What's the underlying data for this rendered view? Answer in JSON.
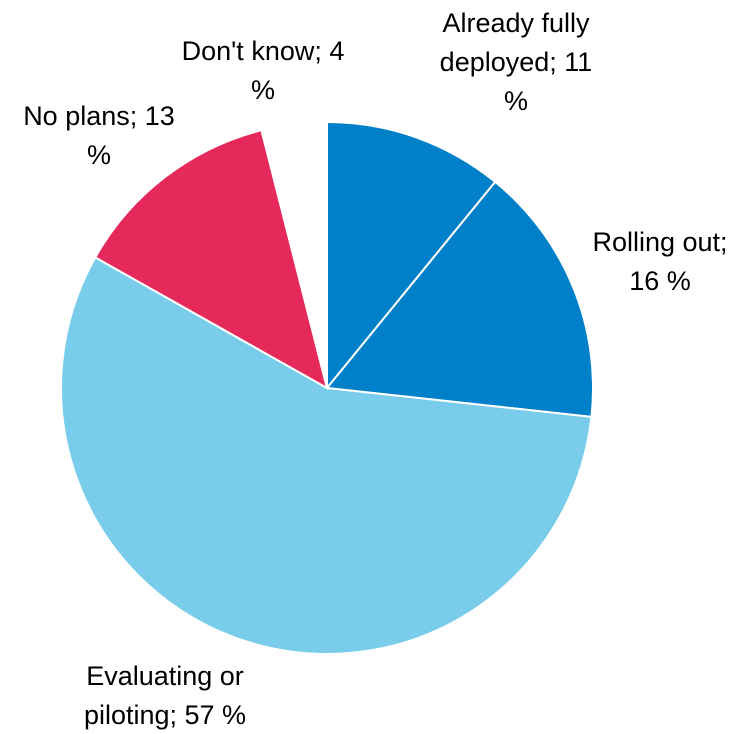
{
  "chart_data": {
    "type": "pie",
    "slices": [
      {
        "label_lines": [
          "Already fully",
          "deployed; 11",
          "%"
        ],
        "category": "Already fully deployed",
        "value": 11,
        "color": "#0080C8"
      },
      {
        "label_lines": [
          "Rolling out;",
          "16 %"
        ],
        "category": "Rolling out",
        "value": 16,
        "color": "#0080C8"
      },
      {
        "label_lines": [
          "Evaluating or",
          "piloting; 57 %"
        ],
        "category": "Evaluating or piloting",
        "value": 57,
        "color": "#79CDEB"
      },
      {
        "label_lines": [
          "No plans; 13",
          "%"
        ],
        "category": "No plans",
        "value": 13,
        "color": "#E5295A"
      },
      {
        "label_lines": [
          "Don't know; 4",
          "%"
        ],
        "category": "Don't know",
        "value": 4,
        "color": "#FFFFFF"
      }
    ]
  }
}
